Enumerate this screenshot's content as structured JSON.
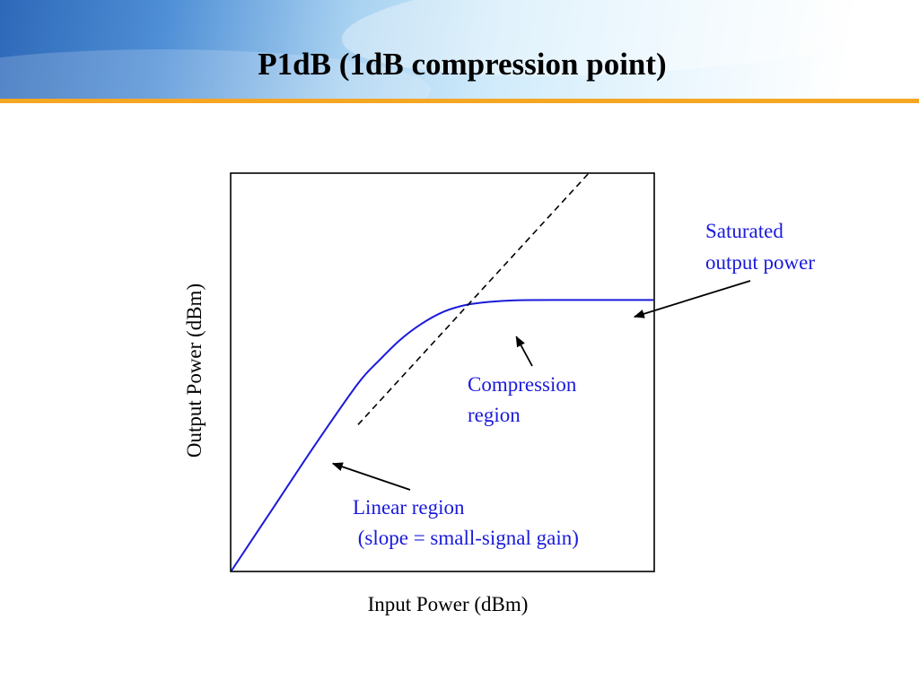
{
  "slide": {
    "title": "P1dB (1dB compression point)"
  },
  "colors": {
    "curve": "#1a1adb",
    "annotation": "#1a1adb",
    "axis_text": "#000000",
    "header_accent": "#f5a623"
  },
  "chart_data": {
    "type": "line",
    "title": "P1dB (1dB compression point)",
    "xlabel": "Input Power (dBm)",
    "ylabel": "Output Power (dBm)",
    "xlim": [
      0,
      1
    ],
    "ylim": [
      0,
      1
    ],
    "grid": false,
    "series": [
      {
        "style": "solid",
        "x": [
          0.0,
          0.1,
          0.2,
          0.3,
          0.35,
          0.4,
          0.45,
          0.5,
          0.55,
          0.6,
          0.65,
          0.7,
          0.8,
          0.9,
          1.0
        ],
        "y": [
          0.0,
          0.16,
          0.32,
          0.472,
          0.53,
          0.582,
          0.622,
          0.6515,
          0.6685,
          0.6765,
          0.6805,
          0.682,
          0.6825,
          0.6825,
          0.6825
        ]
      },
      {
        "style": "dashed",
        "x": [
          0.3,
          0.845
        ],
        "y": [
          0.368,
          1.0
        ]
      }
    ],
    "annotations": [
      {
        "lines": [
          "Saturated",
          "output power"
        ],
        "points_to": {
          "x": 0.955,
          "y": 0.64
        }
      },
      {
        "lines": [
          "Compression",
          "region"
        ],
        "points_to": {
          "x": 0.675,
          "y": 0.59
        }
      },
      {
        "lines": [
          "Linear region",
          " (slope = small-signal gain)"
        ],
        "points_to": {
          "x": 0.24,
          "y": 0.27
        }
      }
    ]
  }
}
